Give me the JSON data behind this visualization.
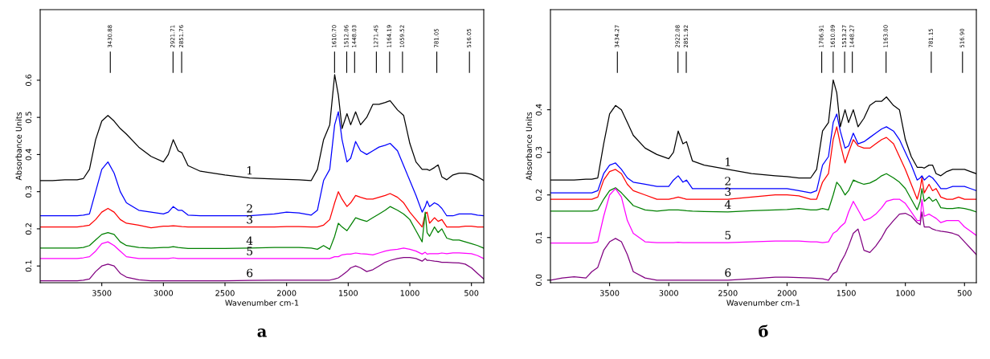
{
  "chart_data": [
    {
      "type": "line",
      "title": "а",
      "xlabel": "Wavenumber cm-1",
      "ylabel": "Absorbance Units",
      "xlim": [
        4000,
        400
      ],
      "ylim": [
        0.055,
        0.79
      ],
      "xticks": [
        3500,
        3000,
        2500,
        2000,
        1500,
        1000,
        500
      ],
      "yticks": [
        0.1,
        0.2,
        0.3,
        0.4,
        0.5,
        0.6
      ],
      "grid": false,
      "legend": false,
      "x": [
        4000,
        3900,
        3800,
        3700,
        3650,
        3600,
        3550,
        3500,
        3450,
        3400,
        3350,
        3300,
        3200,
        3100,
        3000,
        2960,
        2920,
        2880,
        2850,
        2800,
        2700,
        2500,
        2300,
        2100,
        2000,
        1900,
        1800,
        1750,
        1700,
        1650,
        1610,
        1580,
        1550,
        1510,
        1480,
        1440,
        1400,
        1350,
        1300,
        1250,
        1200,
        1160,
        1100,
        1050,
        1000,
        950,
        900,
        875,
        860,
        840,
        800,
        770,
        740,
        700,
        650,
        600,
        550,
        500,
        450,
        400
      ],
      "series": [
        {
          "name": "1",
          "color": "#000000",
          "values": [
            0.33,
            0.33,
            0.332,
            0.332,
            0.335,
            0.36,
            0.44,
            0.49,
            0.505,
            0.49,
            0.47,
            0.455,
            0.42,
            0.395,
            0.38,
            0.4,
            0.44,
            0.41,
            0.405,
            0.37,
            0.355,
            0.345,
            0.337,
            0.334,
            0.333,
            0.332,
            0.33,
            0.36,
            0.44,
            0.48,
            0.615,
            0.56,
            0.47,
            0.51,
            0.48,
            0.515,
            0.48,
            0.5,
            0.535,
            0.535,
            0.54,
            0.545,
            0.52,
            0.505,
            0.43,
            0.38,
            0.36,
            0.36,
            0.36,
            0.357,
            0.365,
            0.372,
            0.34,
            0.332,
            0.345,
            0.35,
            0.35,
            0.347,
            0.34,
            0.33
          ]
        },
        {
          "name": "2",
          "color": "#0000ff",
          "values": [
            0.235,
            0.235,
            0.235,
            0.235,
            0.237,
            0.24,
            0.3,
            0.36,
            0.38,
            0.35,
            0.3,
            0.27,
            0.25,
            0.245,
            0.24,
            0.245,
            0.26,
            0.25,
            0.25,
            0.237,
            0.235,
            0.235,
            0.235,
            0.24,
            0.245,
            0.243,
            0.237,
            0.25,
            0.33,
            0.36,
            0.48,
            0.515,
            0.44,
            0.38,
            0.39,
            0.435,
            0.41,
            0.4,
            0.41,
            0.42,
            0.425,
            0.43,
            0.41,
            0.37,
            0.33,
            0.29,
            0.245,
            0.26,
            0.275,
            0.26,
            0.27,
            0.265,
            0.255,
            0.235,
            0.235,
            0.24,
            0.24,
            0.24,
            0.237,
            0.235
          ]
        },
        {
          "name": "3",
          "color": "#ff0000",
          "values": [
            0.205,
            0.205,
            0.205,
            0.205,
            0.207,
            0.21,
            0.225,
            0.245,
            0.255,
            0.245,
            0.225,
            0.215,
            0.21,
            0.203,
            0.207,
            0.207,
            0.208,
            0.207,
            0.206,
            0.205,
            0.205,
            0.205,
            0.205,
            0.205,
            0.206,
            0.206,
            0.205,
            0.205,
            0.21,
            0.225,
            0.27,
            0.3,
            0.28,
            0.26,
            0.27,
            0.29,
            0.285,
            0.28,
            0.28,
            0.285,
            0.29,
            0.295,
            0.285,
            0.27,
            0.245,
            0.225,
            0.205,
            0.24,
            0.245,
            0.215,
            0.23,
            0.22,
            0.225,
            0.205,
            0.205,
            0.205,
            0.207,
            0.207,
            0.205,
            0.205
          ]
        },
        {
          "name": "4",
          "color": "#008000",
          "values": [
            0.148,
            0.148,
            0.148,
            0.148,
            0.15,
            0.155,
            0.17,
            0.185,
            0.19,
            0.185,
            0.165,
            0.155,
            0.15,
            0.148,
            0.15,
            0.15,
            0.152,
            0.15,
            0.149,
            0.147,
            0.147,
            0.147,
            0.148,
            0.15,
            0.15,
            0.15,
            0.148,
            0.145,
            0.155,
            0.145,
            0.18,
            0.215,
            0.205,
            0.195,
            0.21,
            0.23,
            0.225,
            0.22,
            0.23,
            0.24,
            0.25,
            0.26,
            0.25,
            0.24,
            0.225,
            0.195,
            0.165,
            0.245,
            0.19,
            0.18,
            0.205,
            0.19,
            0.2,
            0.175,
            0.17,
            0.17,
            0.165,
            0.16,
            0.155,
            0.148
          ]
        },
        {
          "name": "5",
          "color": "#ff00ff",
          "values": [
            0.12,
            0.12,
            0.12,
            0.12,
            0.122,
            0.125,
            0.14,
            0.16,
            0.165,
            0.155,
            0.14,
            0.125,
            0.12,
            0.12,
            0.12,
            0.12,
            0.122,
            0.12,
            0.12,
            0.12,
            0.12,
            0.12,
            0.12,
            0.12,
            0.12,
            0.12,
            0.12,
            0.12,
            0.12,
            0.12,
            0.125,
            0.125,
            0.13,
            0.132,
            0.132,
            0.135,
            0.133,
            0.132,
            0.13,
            0.135,
            0.14,
            0.143,
            0.145,
            0.148,
            0.145,
            0.14,
            0.132,
            0.137,
            0.132,
            0.133,
            0.133,
            0.133,
            0.135,
            0.133,
            0.135,
            0.135,
            0.134,
            0.133,
            0.128,
            0.12
          ]
        },
        {
          "name": "6",
          "color": "#800080",
          "values": [
            0.06,
            0.06,
            0.06,
            0.06,
            0.062,
            0.065,
            0.085,
            0.1,
            0.105,
            0.1,
            0.08,
            0.07,
            0.063,
            0.06,
            0.06,
            0.06,
            0.06,
            0.06,
            0.06,
            0.06,
            0.06,
            0.06,
            0.061,
            0.062,
            0.062,
            0.062,
            0.062,
            0.062,
            0.062,
            0.062,
            0.065,
            0.068,
            0.075,
            0.085,
            0.095,
            0.1,
            0.095,
            0.085,
            0.09,
            0.1,
            0.11,
            0.115,
            0.12,
            0.123,
            0.123,
            0.12,
            0.113,
            0.12,
            0.115,
            0.115,
            0.113,
            0.112,
            0.11,
            0.11,
            0.109,
            0.108,
            0.105,
            0.095,
            0.08,
            0.065
          ]
        }
      ],
      "ref_lines": [
        {
          "axis": "x",
          "value": 3430.88,
          "label": "3430.88"
        },
        {
          "axis": "x",
          "value": 2921.71,
          "label": "2921.71"
        },
        {
          "axis": "x",
          "value": 2851.76,
          "label": "2851.76"
        },
        {
          "axis": "x",
          "value": 1610.7,
          "label": "1610.70"
        },
        {
          "axis": "x",
          "value": 1512.06,
          "label": "1512.06"
        },
        {
          "axis": "x",
          "value": 1448.03,
          "label": "1448.03"
        },
        {
          "axis": "x",
          "value": 1271.45,
          "label": "1271.45"
        },
        {
          "axis": "x",
          "value": 1164.19,
          "label": "1164.19"
        },
        {
          "axis": "x",
          "value": 1059.52,
          "label": "1059.52"
        },
        {
          "axis": "x",
          "value": 781.05,
          "label": "781.05"
        },
        {
          "axis": "x",
          "value": 516.05,
          "label": "516.05"
        }
      ]
    },
    {
      "type": "line",
      "title": "б",
      "xlabel": "Wavenumber cm-1",
      "ylabel": "Absorbance Units",
      "xlim": [
        4000,
        400
      ],
      "ylim": [
        -0.006,
        0.635
      ],
      "xticks": [
        3500,
        3000,
        2500,
        2000,
        1500,
        1000,
        500
      ],
      "yticks": [
        {
          "value": 0,
          "label": "0.0"
        },
        0.1,
        0.2,
        0.3,
        0.4
      ],
      "grid": false,
      "legend": false,
      "x": [
        4000,
        3900,
        3800,
        3700,
        3650,
        3600,
        3550,
        3500,
        3450,
        3400,
        3350,
        3300,
        3200,
        3100,
        3000,
        2960,
        2920,
        2880,
        2850,
        2800,
        2700,
        2500,
        2300,
        2100,
        2000,
        1900,
        1800,
        1750,
        1700,
        1650,
        1610,
        1580,
        1550,
        1510,
        1480,
        1440,
        1400,
        1350,
        1300,
        1250,
        1200,
        1160,
        1100,
        1050,
        1000,
        950,
        900,
        875,
        860,
        840,
        800,
        770,
        740,
        700,
        650,
        600,
        550,
        500,
        450,
        400
      ],
      "series": [
        {
          "name": "1",
          "color": "#000000",
          "values": [
            0.235,
            0.235,
            0.235,
            0.237,
            0.237,
            0.24,
            0.32,
            0.39,
            0.41,
            0.4,
            0.37,
            0.34,
            0.31,
            0.295,
            0.285,
            0.3,
            0.35,
            0.32,
            0.325,
            0.28,
            0.27,
            0.26,
            0.25,
            0.245,
            0.243,
            0.24,
            0.24,
            0.26,
            0.35,
            0.37,
            0.47,
            0.44,
            0.36,
            0.4,
            0.37,
            0.4,
            0.36,
            0.38,
            0.41,
            0.42,
            0.42,
            0.43,
            0.41,
            0.4,
            0.33,
            0.29,
            0.265,
            0.265,
            0.265,
            0.263,
            0.27,
            0.27,
            0.25,
            0.245,
            0.255,
            0.26,
            0.26,
            0.26,
            0.255,
            0.25
          ]
        },
        {
          "name": "2",
          "color": "#0000ff",
          "values": [
            0.205,
            0.205,
            0.205,
            0.205,
            0.205,
            0.21,
            0.25,
            0.27,
            0.275,
            0.26,
            0.24,
            0.23,
            0.225,
            0.22,
            0.22,
            0.235,
            0.245,
            0.23,
            0.235,
            0.215,
            0.215,
            0.215,
            0.215,
            0.215,
            0.215,
            0.21,
            0.205,
            0.21,
            0.27,
            0.29,
            0.37,
            0.39,
            0.35,
            0.31,
            0.315,
            0.345,
            0.32,
            0.325,
            0.335,
            0.345,
            0.355,
            0.36,
            0.35,
            0.33,
            0.3,
            0.27,
            0.235,
            0.24,
            0.245,
            0.235,
            0.245,
            0.24,
            0.23,
            0.215,
            0.215,
            0.22,
            0.22,
            0.22,
            0.215,
            0.21
          ]
        },
        {
          "name": "3",
          "color": "#ff0000",
          "values": [
            0.19,
            0.19,
            0.19,
            0.19,
            0.19,
            0.195,
            0.235,
            0.255,
            0.26,
            0.25,
            0.225,
            0.21,
            0.2,
            0.19,
            0.19,
            0.192,
            0.195,
            0.192,
            0.19,
            0.19,
            0.19,
            0.19,
            0.195,
            0.2,
            0.2,
            0.198,
            0.19,
            0.19,
            0.23,
            0.25,
            0.33,
            0.36,
            0.32,
            0.275,
            0.3,
            0.33,
            0.315,
            0.31,
            0.31,
            0.32,
            0.33,
            0.335,
            0.32,
            0.29,
            0.26,
            0.225,
            0.19,
            0.215,
            0.24,
            0.205,
            0.225,
            0.21,
            0.215,
            0.195,
            0.19,
            0.19,
            0.195,
            0.19,
            0.19,
            0.19
          ]
        },
        {
          "name": "4",
          "color": "#008000",
          "values": [
            0.162,
            0.162,
            0.162,
            0.162,
            0.162,
            0.165,
            0.19,
            0.21,
            0.217,
            0.205,
            0.19,
            0.175,
            0.165,
            0.162,
            0.165,
            0.165,
            0.165,
            0.164,
            0.163,
            0.162,
            0.161,
            0.16,
            0.163,
            0.165,
            0.166,
            0.168,
            0.165,
            0.165,
            0.168,
            0.165,
            0.2,
            0.23,
            0.22,
            0.2,
            0.21,
            0.235,
            0.23,
            0.225,
            0.228,
            0.235,
            0.245,
            0.25,
            0.24,
            0.23,
            0.215,
            0.19,
            0.165,
            0.185,
            0.215,
            0.185,
            0.195,
            0.185,
            0.19,
            0.17,
            0.168,
            0.168,
            0.17,
            0.168,
            0.165,
            0.16
          ]
        },
        {
          "name": "5",
          "color": "#ff00ff",
          "values": [
            0.087,
            0.087,
            0.087,
            0.087,
            0.087,
            0.09,
            0.15,
            0.2,
            0.215,
            0.195,
            0.14,
            0.11,
            0.09,
            0.088,
            0.088,
            0.088,
            0.089,
            0.088,
            0.088,
            0.088,
            0.088,
            0.088,
            0.09,
            0.092,
            0.092,
            0.092,
            0.09,
            0.09,
            0.088,
            0.09,
            0.11,
            0.115,
            0.125,
            0.135,
            0.16,
            0.185,
            0.165,
            0.14,
            0.145,
            0.155,
            0.17,
            0.185,
            0.19,
            0.19,
            0.18,
            0.16,
            0.14,
            0.14,
            0.19,
            0.15,
            0.155,
            0.15,
            0.145,
            0.135,
            0.14,
            0.14,
            0.14,
            0.125,
            0.115,
            0.105
          ]
        },
        {
          "name": "6",
          "color": "#800080",
          "values": [
            0.0,
            0.005,
            0.008,
            0.005,
            0.02,
            0.03,
            0.07,
            0.09,
            0.098,
            0.09,
            0.06,
            0.02,
            0.005,
            0.0,
            0.0,
            0.0,
            0.0,
            0.0,
            0.0,
            0.0,
            0.0,
            0.0,
            0.003,
            0.007,
            0.007,
            0.006,
            0.005,
            0.004,
            0.003,
            0.0,
            0.015,
            0.02,
            0.04,
            0.06,
            0.08,
            0.11,
            0.12,
            0.07,
            0.065,
            0.08,
            0.1,
            0.12,
            0.14,
            0.155,
            0.157,
            0.15,
            0.135,
            0.13,
            0.16,
            0.125,
            0.125,
            0.12,
            0.117,
            0.115,
            0.113,
            0.11,
            0.105,
            0.09,
            0.075,
            0.06
          ]
        }
      ],
      "ref_lines": [
        {
          "axis": "x",
          "value": 3434.27,
          "label": "3434.27"
        },
        {
          "axis": "x",
          "value": 2922.08,
          "label": "2922.08"
        },
        {
          "axis": "x",
          "value": 2851.92,
          "label": "2851.92"
        },
        {
          "axis": "x",
          "value": 1706.91,
          "label": "1706.91"
        },
        {
          "axis": "x",
          "value": 1610.09,
          "label": "1610.09"
        },
        {
          "axis": "x",
          "value": 1513.27,
          "label": "1513.27"
        },
        {
          "axis": "x",
          "value": 1448.27,
          "label": "1448.27"
        },
        {
          "axis": "x",
          "value": 1163.0,
          "label": "1163.00"
        },
        {
          "axis": "x",
          "value": 781.15,
          "label": "781.15"
        },
        {
          "axis": "x",
          "value": 516.9,
          "label": "516.90"
        }
      ]
    }
  ]
}
